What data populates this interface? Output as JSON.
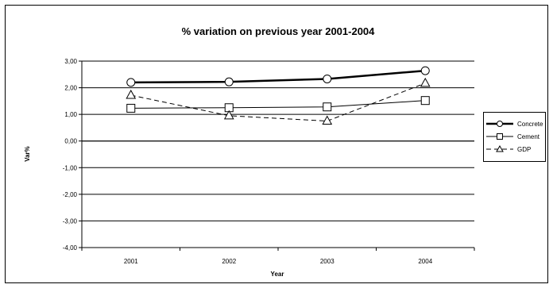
{
  "chart_data": {
    "type": "line",
    "title": "% variation on previous year 2001-2004",
    "xlabel": "Year",
    "ylabel": "Var%",
    "categories": [
      "2001",
      "2002",
      "2003",
      "2004"
    ],
    "ylim": [
      -4,
      3
    ],
    "yticks": [
      3,
      2,
      1,
      0,
      -1,
      -2,
      -3,
      -4
    ],
    "ytick_labels": [
      "3,00",
      "2,00",
      "1,00",
      "0,00",
      "-1,00",
      "-2,00",
      "-3,00",
      "-4,00"
    ],
    "grid": "horizontal",
    "legend_position": "right",
    "series": [
      {
        "name": "Concrete",
        "values": [
          2.2,
          2.22,
          2.33,
          2.64
        ],
        "marker": "circle",
        "line": "solid-thick",
        "color": "#000000"
      },
      {
        "name": "Cement",
        "values": [
          1.23,
          1.25,
          1.28,
          1.52
        ],
        "marker": "square",
        "line": "solid",
        "color": "#000000"
      },
      {
        "name": "GDP",
        "values": [
          1.72,
          0.95,
          0.75,
          2.17
        ],
        "marker": "triangle",
        "line": "dashed",
        "color": "#000000"
      }
    ]
  }
}
